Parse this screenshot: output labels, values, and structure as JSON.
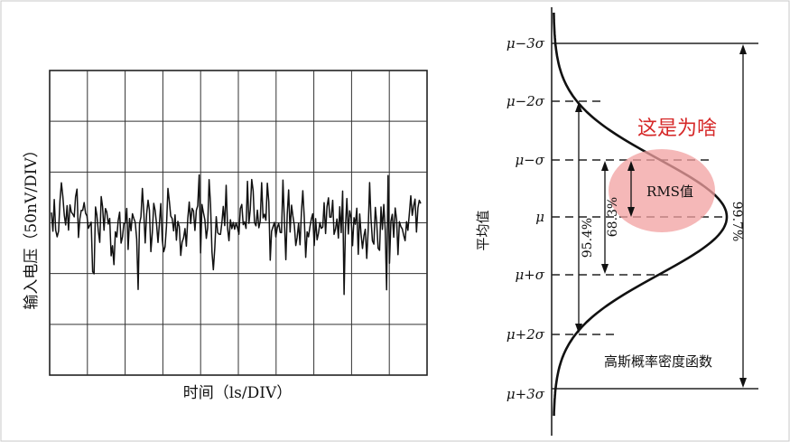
{
  "left_panel": {
    "y_axis_label": "输入电压（50nV/DIV）",
    "x_axis_label": "时间（ls/DIV）"
  },
  "right_panel": {
    "mean_axis_label": "平均值",
    "sigma_labels": [
      "μ−3σ",
      "μ−2σ",
      "μ−σ",
      "μ",
      "μ+σ",
      "μ+2σ",
      "μ+3σ"
    ],
    "percent_labels": {
      "one_sigma": "68.3%",
      "two_sigma": "95.4%",
      "three_sigma": "99.7%"
    },
    "rms_label": "RMS值",
    "curve_caption": "高斯概率密度函数"
  },
  "annotation": {
    "question_text": "这是为啥",
    "color": "#d62828",
    "highlight_color": "#f2a0a0"
  },
  "noise_seed": 17
}
